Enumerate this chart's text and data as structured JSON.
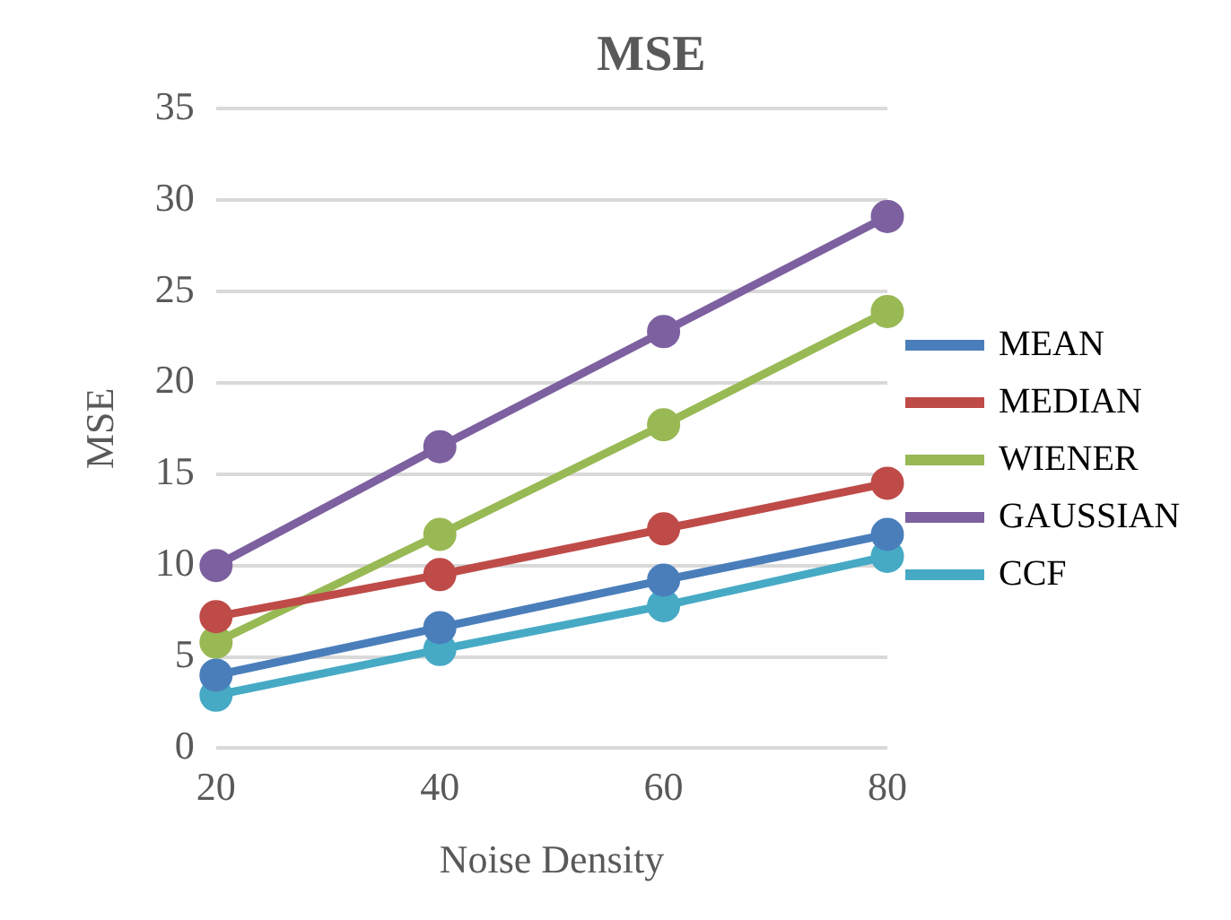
{
  "chart_data": {
    "type": "line",
    "title": "MSE",
    "xlabel": "Noise Density",
    "ylabel": "MSE",
    "categories": [
      "20",
      "40",
      "60",
      "80"
    ],
    "series": [
      {
        "name": "MEAN",
        "color": "#4a7ebb",
        "values": [
          4.0,
          6.6,
          9.2,
          11.7
        ]
      },
      {
        "name": "MEDIAN",
        "color": "#be4b48",
        "values": [
          7.2,
          9.5,
          12.0,
          14.5
        ]
      },
      {
        "name": "WIENER",
        "color": "#98b954",
        "values": [
          5.8,
          11.7,
          17.7,
          23.9
        ]
      },
      {
        "name": "GAUSSIAN",
        "color": "#7d60a0",
        "values": [
          10.0,
          16.5,
          22.8,
          29.1
        ]
      },
      {
        "name": "CCF",
        "color": "#46aac5",
        "values": [
          2.9,
          5.4,
          7.8,
          10.5
        ]
      }
    ],
    "ylim": [
      0,
      35
    ],
    "yticks": [
      0,
      5,
      10,
      15,
      20,
      25,
      30,
      35
    ],
    "grid": "y",
    "legend": "right",
    "marker": "circle",
    "line_style": "solid"
  }
}
